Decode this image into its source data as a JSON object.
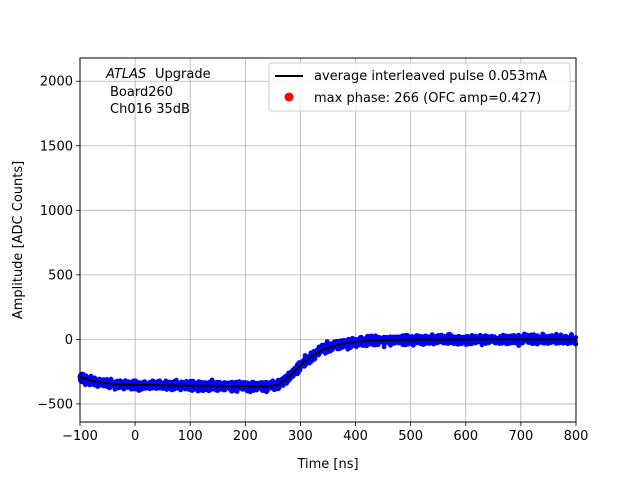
{
  "chart_data": {
    "type": "scatter",
    "xlabel": "Time [ns]",
    "ylabel": "Amplitude [ADC Counts]",
    "xlim": [
      -100,
      800
    ],
    "ylim": [
      -640,
      2180
    ],
    "xticks": [
      -100,
      0,
      100,
      200,
      300,
      400,
      500,
      600,
      700,
      800
    ],
    "yticks": [
      -500,
      0,
      500,
      1000,
      1500,
      2000
    ],
    "grid": true,
    "legend_position": "top-right",
    "annotation": {
      "atlas": "ATLAS",
      "upgrade": "Upgrade",
      "board": "Board260",
      "channel": "Ch016 35dB"
    },
    "series": [
      {
        "name": "average interleaved pulse 0.053mA",
        "kind": "line",
        "color": "#000000",
        "x": [
          -100,
          -80,
          -60,
          -40,
          -20,
          0,
          50,
          100,
          150,
          200,
          240,
          260,
          280,
          300,
          320,
          340,
          360,
          380,
          400,
          420,
          440,
          460,
          500,
          550,
          600,
          650,
          700,
          750,
          800
        ],
        "y": [
          -290,
          -320,
          -335,
          -345,
          -350,
          -352,
          -355,
          -358,
          -360,
          -362,
          -365,
          -350,
          -290,
          -200,
          -130,
          -80,
          -50,
          -30,
          -20,
          -12,
          -8,
          -5,
          -3,
          -2,
          -1,
          0,
          0,
          0,
          0
        ]
      },
      {
        "name": "max phase: 266 (OFC amp=0.427)",
        "kind": "scatter",
        "color": "#ff0000",
        "x": [],
        "y": []
      },
      {
        "name": "",
        "kind": "scatter",
        "color": "#0000ff",
        "spread": 30
      }
    ]
  }
}
